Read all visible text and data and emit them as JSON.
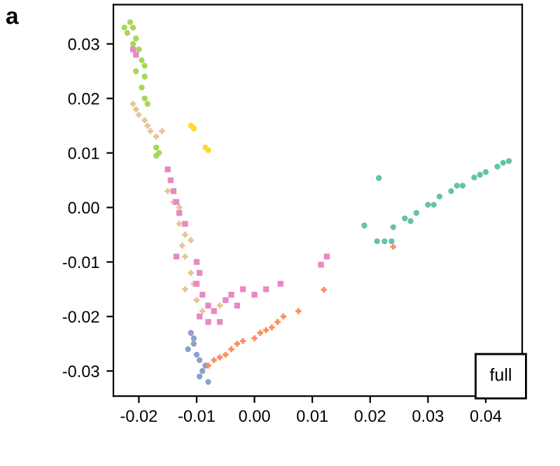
{
  "chart_data": {
    "type": "scatter",
    "annotations": [
      "a",
      "full"
    ],
    "xlim": [
      -0.0244,
      0.0463
    ],
    "ylim": [
      -0.0346,
      0.0372
    ],
    "xticks": [
      {
        "value": -0.02,
        "label": "-0.02"
      },
      {
        "value": -0.01,
        "label": "-0.01"
      },
      {
        "value": 0.0,
        "label": "0.00"
      },
      {
        "value": 0.01,
        "label": "0.01"
      },
      {
        "value": 0.02,
        "label": "0.02"
      },
      {
        "value": 0.03,
        "label": "0.03"
      },
      {
        "value": 0.04,
        "label": "0.04"
      }
    ],
    "yticks": [
      {
        "value": -0.03,
        "label": "-0.03"
      },
      {
        "value": -0.02,
        "label": "-0.02"
      },
      {
        "value": -0.01,
        "label": "-0.01"
      },
      {
        "value": 0.0,
        "label": "0.00"
      },
      {
        "value": 0.01,
        "label": "0.01"
      },
      {
        "value": 0.02,
        "label": "0.02"
      },
      {
        "value": 0.03,
        "label": "0.03"
      }
    ],
    "grid": false,
    "legend": false,
    "series": [
      {
        "color": "#a6d854",
        "marker": "circle",
        "x": [
          -0.0215,
          -0.021,
          -0.022,
          -0.0205,
          -0.021,
          -0.02,
          -0.0195,
          -0.019,
          -0.0205,
          -0.019,
          -0.0195,
          -0.019,
          -0.0185,
          -0.017,
          -0.0165,
          -0.017,
          -0.0225
        ],
        "values": [
          0.034,
          0.033,
          0.032,
          0.031,
          0.03,
          0.029,
          0.027,
          0.026,
          0.025,
          0.024,
          0.022,
          0.02,
          0.019,
          0.011,
          0.01,
          0.0095,
          0.033
        ]
      },
      {
        "color": "#e5c494",
        "marker": "cross",
        "x": [
          -0.021,
          -0.0205,
          -0.02,
          -0.019,
          -0.0185,
          -0.018,
          -0.017,
          -0.016,
          -0.015,
          -0.014,
          -0.013,
          -0.013,
          -0.012,
          -0.0125,
          -0.011,
          -0.012,
          -0.011,
          -0.0105,
          -0.012,
          -0.01,
          -0.009,
          -0.006
        ],
        "values": [
          0.019,
          0.018,
          0.017,
          0.016,
          0.015,
          0.014,
          0.013,
          0.014,
          0.003,
          0.001,
          0.0,
          -0.003,
          -0.005,
          -0.007,
          -0.006,
          -0.009,
          -0.012,
          -0.014,
          -0.015,
          -0.017,
          -0.019,
          -0.018
        ]
      },
      {
        "color": "#e78ac3",
        "marker": "square",
        "x": [
          -0.021,
          -0.0205,
          -0.015,
          -0.0145,
          -0.014,
          -0.0135,
          -0.013,
          -0.012,
          -0.0135,
          -0.01,
          -0.0095,
          -0.01,
          -0.009,
          -0.008,
          -0.0095,
          -0.008,
          -0.007,
          -0.006,
          -0.005,
          -0.004,
          -0.002,
          -0.003,
          0.002,
          0.0045,
          0.0115,
          0.0125,
          0.0
        ],
        "values": [
          0.029,
          0.028,
          0.007,
          0.005,
          0.003,
          0.001,
          -0.001,
          -0.003,
          -0.009,
          -0.01,
          -0.012,
          -0.014,
          -0.016,
          -0.018,
          -0.02,
          -0.021,
          -0.019,
          -0.021,
          -0.017,
          -0.016,
          -0.015,
          -0.018,
          -0.015,
          -0.014,
          -0.0105,
          -0.009,
          -0.016
        ]
      },
      {
        "color": "#ffd92f",
        "marker": "circle",
        "x": [
          -0.011,
          -0.0105,
          -0.0085,
          -0.008
        ],
        "values": [
          0.015,
          0.0145,
          0.011,
          0.0105
        ]
      },
      {
        "color": "#8da0cb",
        "marker": "circle",
        "x": [
          -0.011,
          -0.0105,
          -0.0115,
          -0.01,
          -0.0095,
          -0.009,
          -0.0095,
          -0.008,
          -0.0105,
          -0.0085
        ],
        "values": [
          -0.023,
          -0.025,
          -0.026,
          -0.027,
          -0.028,
          -0.03,
          -0.031,
          -0.032,
          -0.024,
          -0.029
        ]
      },
      {
        "color": "#fc8d62",
        "marker": "cross",
        "x": [
          -0.008,
          -0.007,
          -0.006,
          -0.005,
          -0.004,
          -0.003,
          -0.002,
          0.0,
          0.001,
          0.002,
          0.003,
          0.004,
          0.005,
          0.0076,
          0.012,
          0.024
        ],
        "values": [
          -0.029,
          -0.028,
          -0.0275,
          -0.027,
          -0.026,
          -0.025,
          -0.0245,
          -0.024,
          -0.023,
          -0.0225,
          -0.022,
          -0.021,
          -0.02,
          -0.019,
          -0.0151,
          -0.0072
        ]
      },
      {
        "color": "#66c2a5",
        "marker": "circle",
        "x": [
          0.024,
          0.026,
          0.028,
          0.03,
          0.032,
          0.034,
          0.036,
          0.038,
          0.04,
          0.042,
          0.044,
          0.027,
          0.031,
          0.035,
          0.039,
          0.043,
          0.0215,
          0.019,
          0.0212,
          0.0225,
          0.0237
        ],
        "values": [
          -0.0036,
          -0.002,
          -0.001,
          0.0005,
          0.002,
          0.003,
          0.004,
          0.0055,
          0.0065,
          0.0075,
          0.0085,
          -0.0025,
          0.0005,
          0.004,
          0.006,
          0.0082,
          0.0054,
          -0.0033,
          -0.0062,
          -0.0062,
          -0.0062
        ]
      }
    ]
  }
}
